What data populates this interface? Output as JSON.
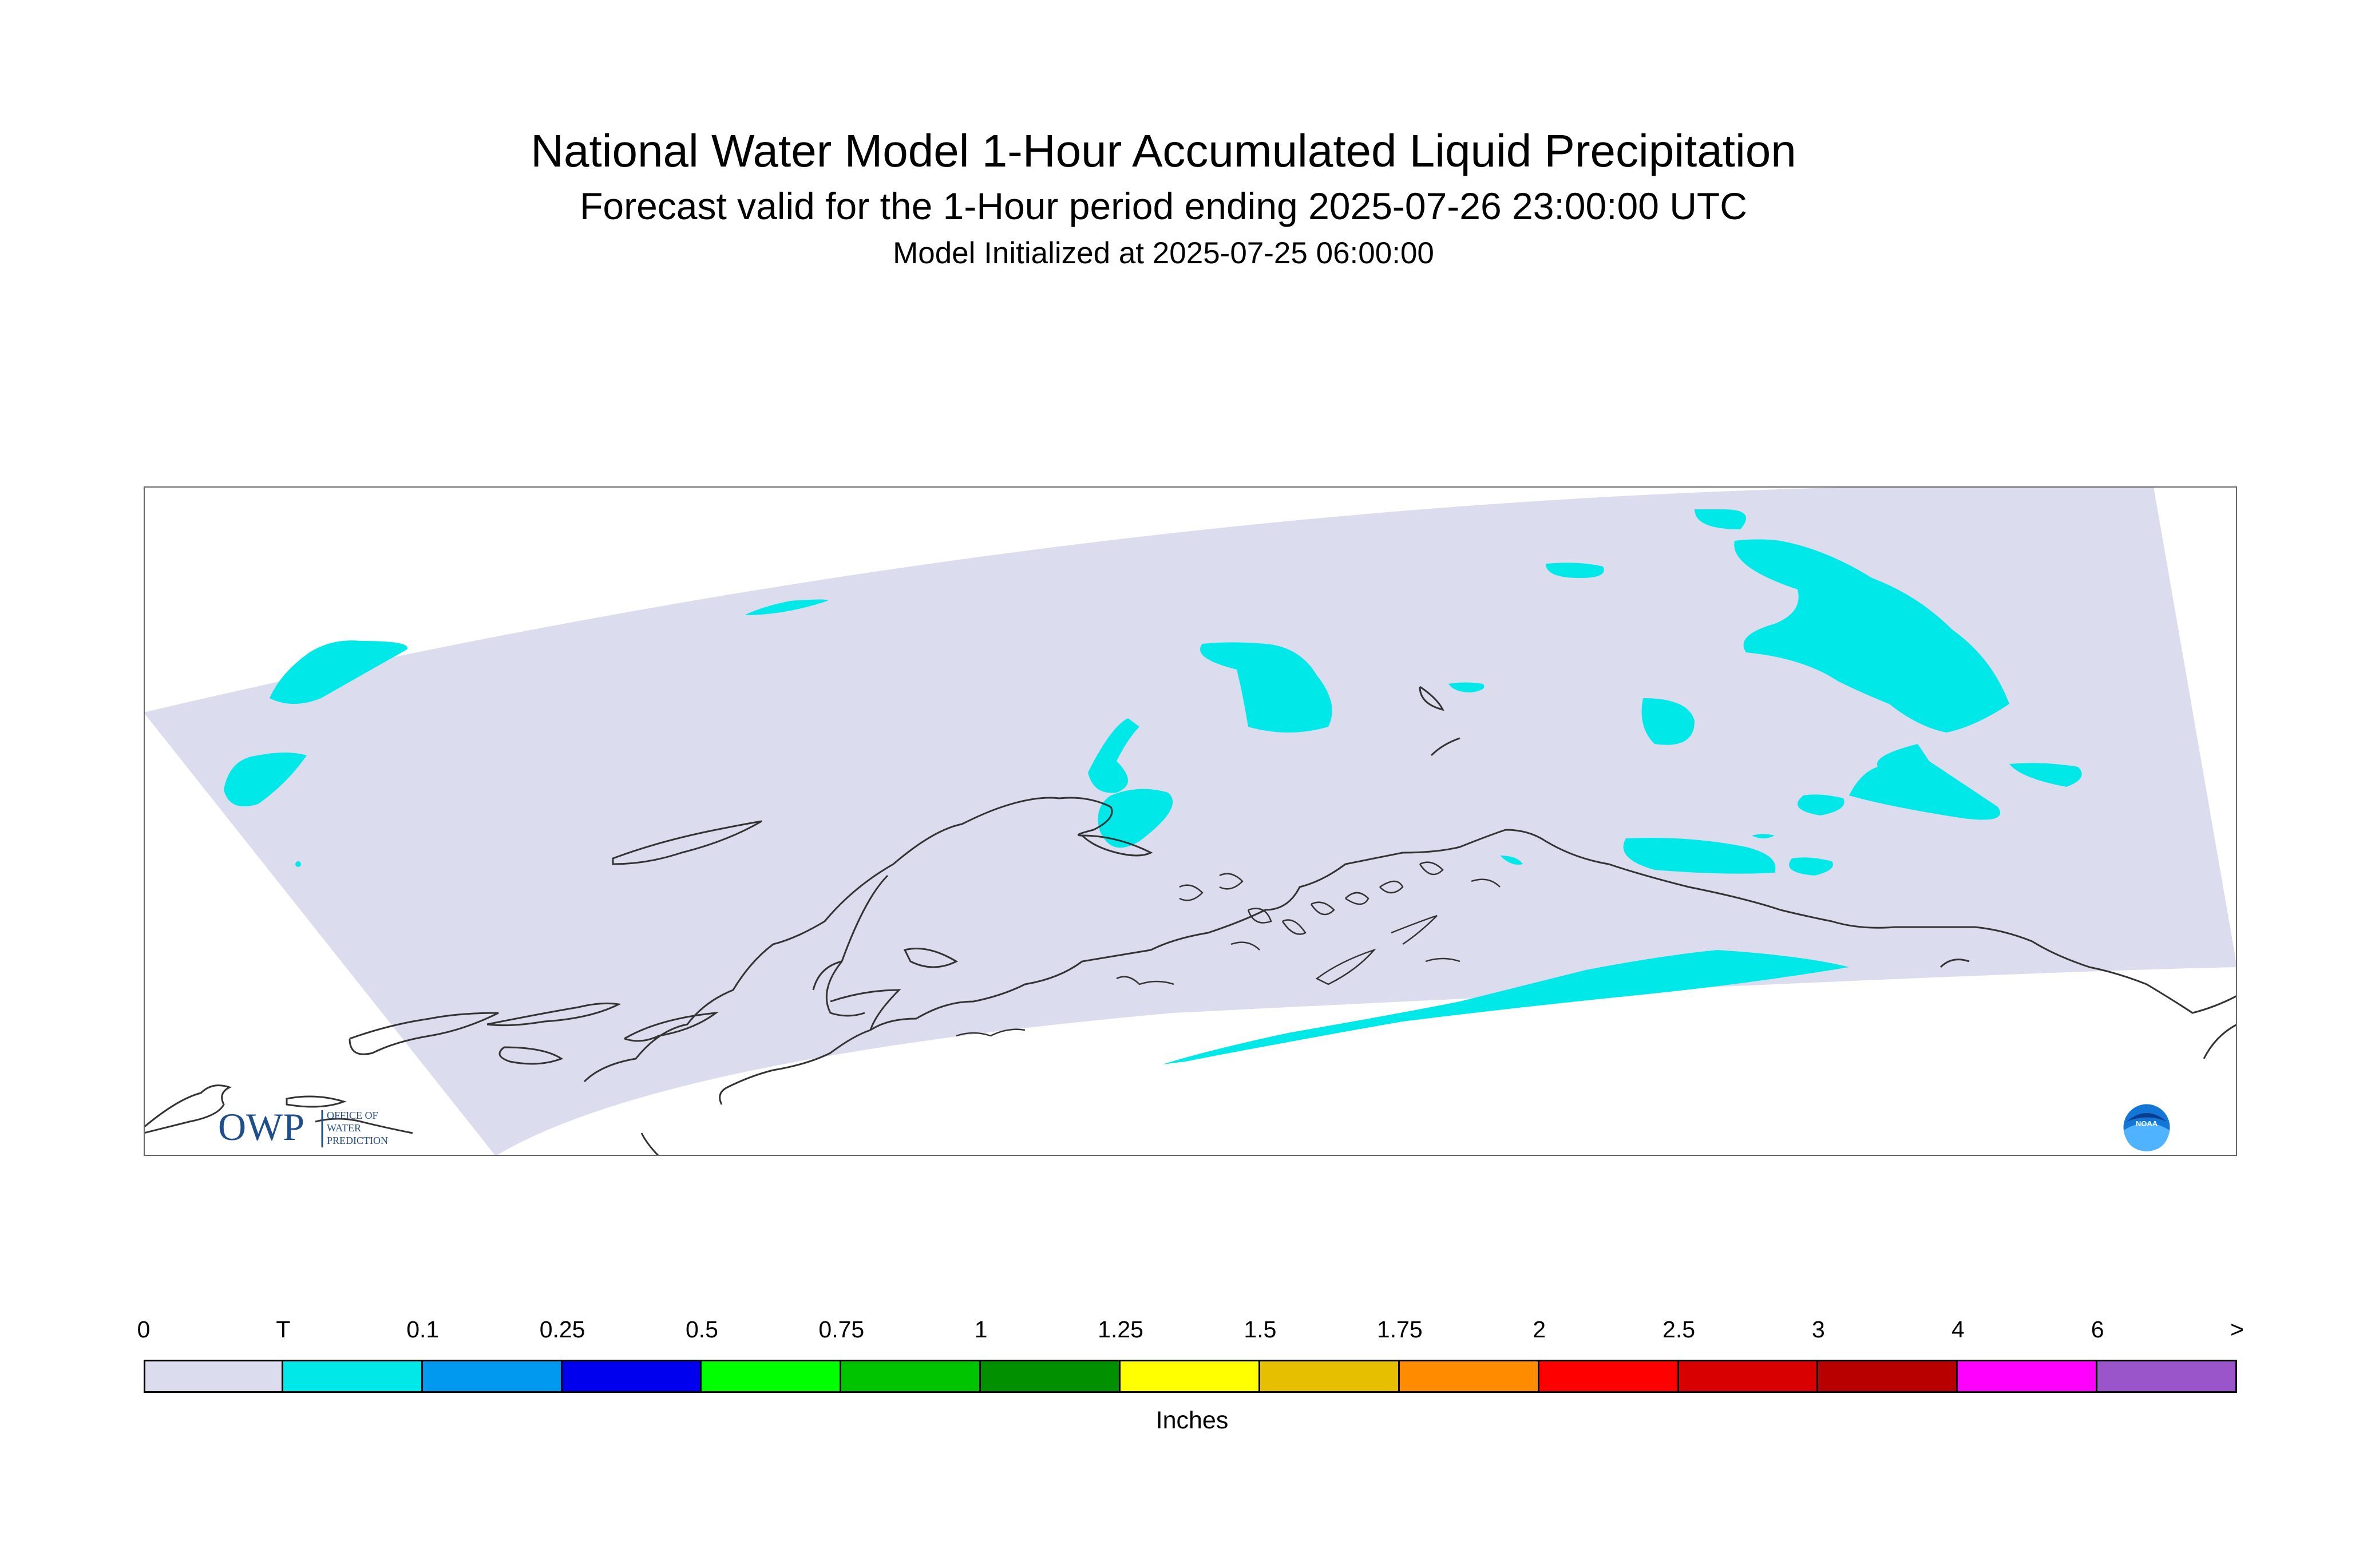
{
  "header": {
    "title": "National Water Model 1-Hour Accumulated Liquid Precipitation",
    "subtitle": "Forecast valid for the 1-Hour period ending 2025-07-26 23:00:00 UTC",
    "init": "Model Initialized at 2025-07-25 06:00:00"
  },
  "logos": {
    "owp_mark": "OWP",
    "owp_text": [
      "OFFICE OF",
      "WATER",
      "PREDICTION"
    ],
    "noaa_text": "NOAA"
  },
  "legend": {
    "units": "Inches",
    "ticks": [
      "0",
      "T",
      "0.1",
      "0.25",
      "0.5",
      "0.75",
      "1",
      "1.25",
      "1.5",
      "1.75",
      "2",
      "2.5",
      "3",
      "4",
      "6",
      ">"
    ],
    "colors": [
      "#dcdcef",
      "#00e8e8",
      "#0099f0",
      "#0000ee",
      "#00ff00",
      "#00c400",
      "#009000",
      "#ffff00",
      "#e6bf00",
      "#ff8c00",
      "#ff0000",
      "#d80000",
      "#b80000",
      "#ff00ff",
      "#9955c9"
    ]
  },
  "colors": {
    "domain_fill": "#dcdcef",
    "trace_fill": "#00e8e8",
    "coastline": "#333333"
  }
}
